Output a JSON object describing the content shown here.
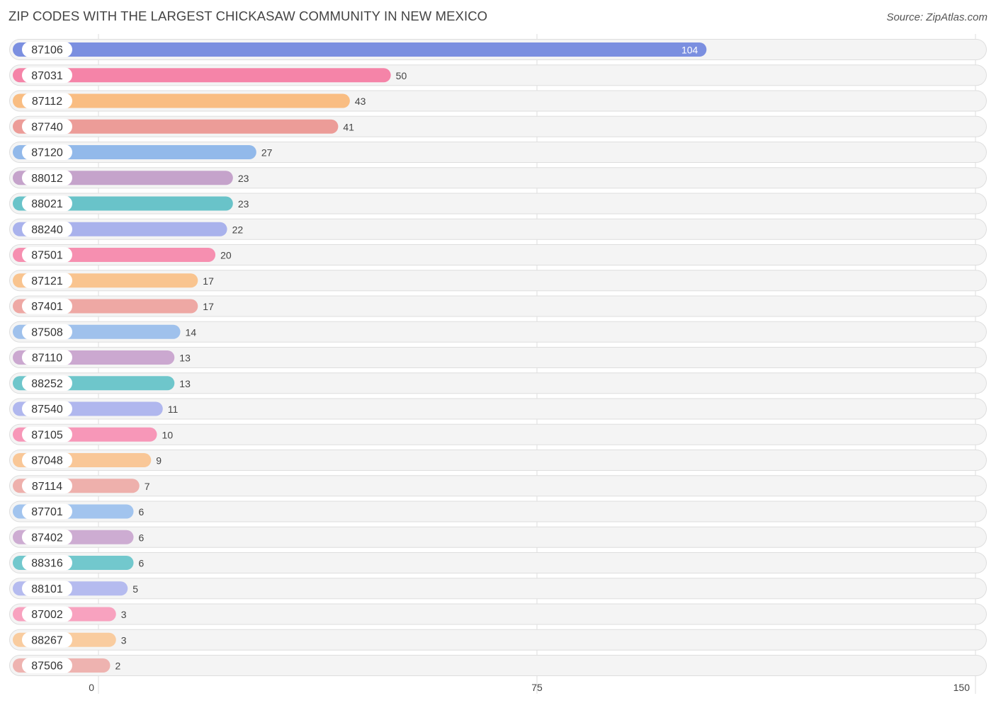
{
  "chart_data": {
    "type": "bar",
    "orientation": "horizontal",
    "title": "ZIP CODES WITH THE LARGEST CHICKASAW COMMUNITY IN NEW MEXICO",
    "source": "Source: ZipAtlas.com",
    "xlabel": "",
    "ylabel": "",
    "xlim": [
      0,
      150
    ],
    "xticks": [
      0,
      75,
      150
    ],
    "grid": true,
    "categories": [
      "87106",
      "87031",
      "87112",
      "87740",
      "87120",
      "88012",
      "88021",
      "88240",
      "87501",
      "87121",
      "87401",
      "87508",
      "87110",
      "88252",
      "87540",
      "87105",
      "87048",
      "87114",
      "87701",
      "87402",
      "88316",
      "88101",
      "87002",
      "88267",
      "87506"
    ],
    "values": [
      104,
      50,
      43,
      41,
      27,
      23,
      23,
      22,
      20,
      17,
      17,
      14,
      13,
      13,
      11,
      10,
      9,
      7,
      6,
      6,
      6,
      5,
      3,
      3,
      2
    ],
    "colors": [
      "#7b8fe0",
      "#f584a8",
      "#f9bd82",
      "#ec9c98",
      "#92b9ea",
      "#c5a3cb",
      "#69c3c9",
      "#a9b2ec",
      "#f68fb0",
      "#f9c48f",
      "#eea8a4",
      "#9fc1ec",
      "#cba8d0",
      "#6ec6cb",
      "#b0b7ee",
      "#f797b8",
      "#f9c797",
      "#eeb0ac",
      "#a2c4ee",
      "#cdacd2",
      "#72c8cd",
      "#b5bbef",
      "#f8a2bf",
      "#f9cc9f",
      "#eeb3b0"
    ]
  }
}
